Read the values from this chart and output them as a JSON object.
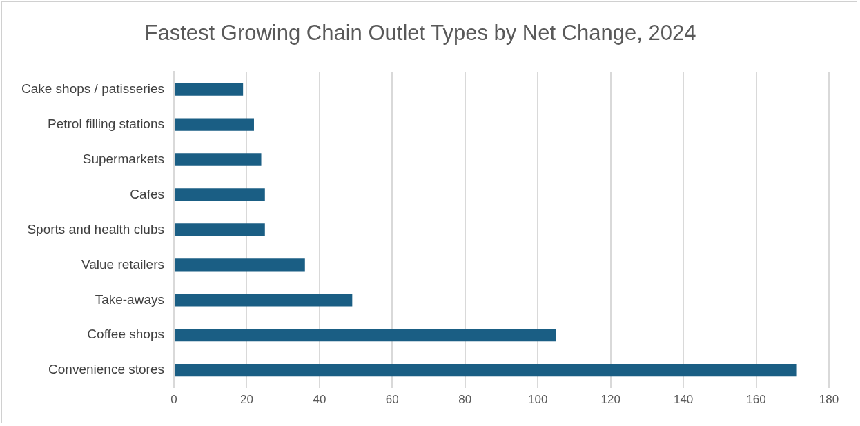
{
  "chart_data": {
    "type": "bar",
    "orientation": "horizontal",
    "title": "Fastest Growing Chain Outlet Types by Net Change, 2024",
    "categories": [
      "Cake shops / patisseries",
      "Petrol filling stations",
      "Supermarkets",
      "Cafes",
      "Sports and health clubs",
      "Value retailers",
      "Take-aways",
      "Coffee shops",
      "Convenience stores"
    ],
    "values": [
      19,
      22,
      24,
      25,
      25,
      36,
      49,
      105,
      171
    ],
    "color": "#1a5e84",
    "xlim": [
      0,
      180
    ],
    "xticks": [
      0,
      20,
      40,
      60,
      80,
      100,
      120,
      140,
      160,
      180
    ],
    "grid": "x",
    "legend": false
  }
}
